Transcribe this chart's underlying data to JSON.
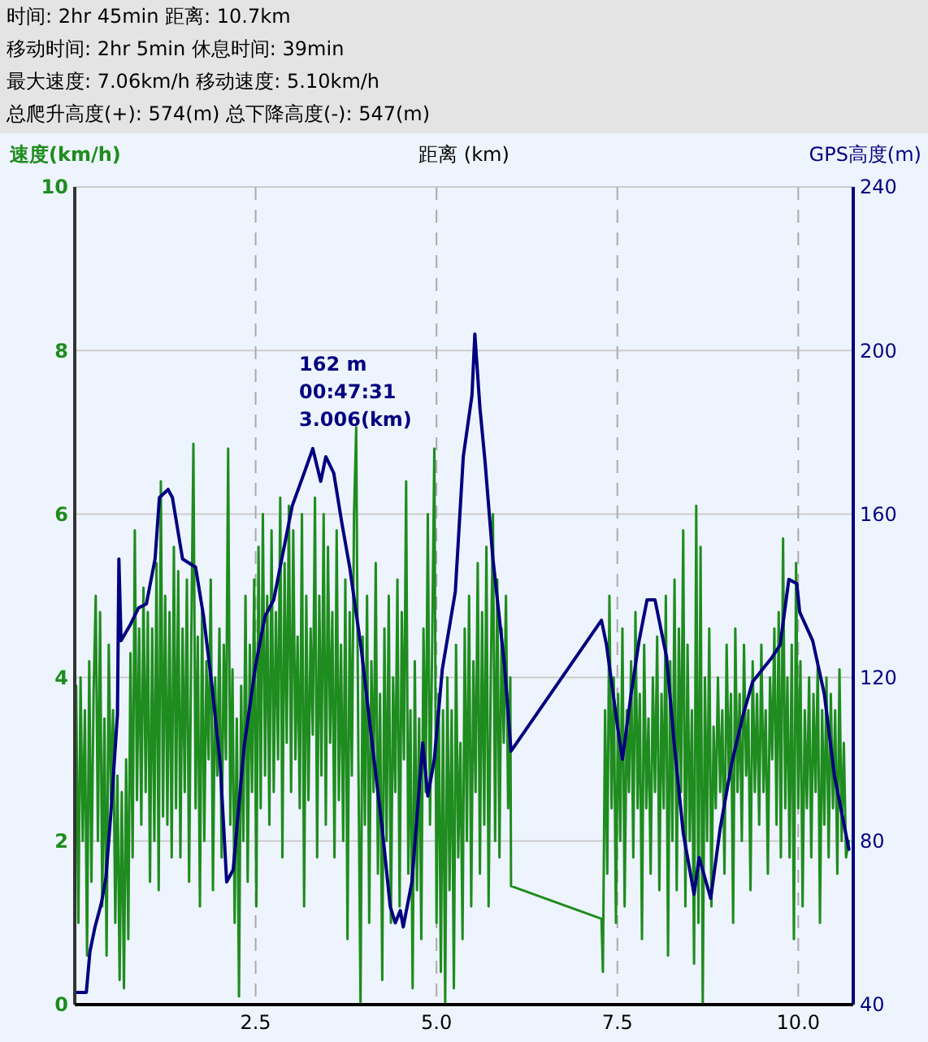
{
  "chart_data": {
    "type": "line",
    "xlabel": "距离 (km)",
    "ylabel": "速度(km/h)",
    "y2label": "GPS高度(m)",
    "annotations": [
      "时间: 2hr 45min  距离: 10.7km",
      "移动时间: 2hr 5min  休息时间: 39min",
      "最大速度: 7.06km/h  移动速度: 5.10km/h",
      "总爬升高度(+): 574(m)  总下降高度(-): 547(m)",
      "162 m\n00:47:31\n3.006(km)"
    ],
    "xlim": [
      0,
      10.76
    ],
    "xticks": [
      2.5,
      {
        "value": 5,
        "label": "5.0"
      },
      7.5,
      {
        "value": 10,
        "label": "10.0"
      }
    ],
    "ylim": [
      0,
      10
    ],
    "yticks": [
      0,
      2,
      4,
      6,
      8,
      10
    ],
    "y2lim": [
      40,
      240
    ],
    "y2ticks": [
      40,
      80,
      120,
      160,
      200,
      240
    ],
    "grid": true,
    "series": [
      {
        "color": "#1e8c1e",
        "x": [
          0.02,
          0.05,
          0.08,
          0.11,
          0.14,
          0.17,
          0.2,
          0.23,
          0.26,
          0.29,
          0.32,
          0.35,
          0.38,
          0.41,
          0.44,
          0.47,
          0.5,
          0.53,
          0.56,
          0.59,
          0.62,
          0.65,
          0.68,
          0.71,
          0.74,
          0.77,
          0.8,
          0.83,
          0.86,
          0.89,
          0.92,
          0.95,
          0.98,
          1.01,
          1.04,
          1.07,
          1.1,
          1.13,
          1.16,
          1.19,
          1.22,
          1.25,
          1.28,
          1.31,
          1.34,
          1.37,
          1.4,
          1.43,
          1.46,
          1.49,
          1.52,
          1.55,
          1.58,
          1.61,
          1.64,
          1.67,
          1.7,
          1.73,
          1.76,
          1.79,
          1.82,
          1.85,
          1.88,
          1.91,
          1.94,
          1.97,
          2.0,
          2.03,
          2.06,
          2.09,
          2.12,
          2.15,
          2.18,
          2.21,
          2.24,
          2.27,
          2.3,
          2.33,
          2.36,
          2.39,
          2.42,
          2.45,
          2.48,
          2.51,
          2.54,
          2.57,
          2.6,
          2.63,
          2.66,
          2.69,
          2.72,
          2.75,
          2.78,
          2.81,
          2.84,
          2.87,
          2.9,
          2.93,
          2.96,
          2.99,
          3.02,
          3.05,
          3.08,
          3.11,
          3.14,
          3.17,
          3.2,
          3.23,
          3.26,
          3.29,
          3.32,
          3.35,
          3.38,
          3.41,
          3.44,
          3.47,
          3.5,
          3.53,
          3.56,
          3.59,
          3.62,
          3.65,
          3.68,
          3.71,
          3.74,
          3.77,
          3.8,
          3.83,
          3.86,
          3.89,
          3.92,
          3.95,
          3.98,
          4.01,
          4.04,
          4.07,
          4.1,
          4.13,
          4.16,
          4.19,
          4.22,
          4.25,
          4.28,
          4.31,
          4.34,
          4.37,
          4.4,
          4.43,
          4.46,
          4.49,
          4.52,
          4.55,
          4.58,
          4.61,
          4.64,
          4.67,
          4.7,
          4.73,
          4.76,
          4.79,
          4.82,
          4.85,
          4.88,
          4.91,
          4.94,
          4.97,
          5.0,
          5.03,
          5.06,
          5.09,
          5.12,
          5.15,
          5.18,
          5.21,
          5.24,
          5.27,
          5.3,
          5.33,
          5.36,
          5.39,
          5.42,
          5.45,
          5.48,
          5.51,
          5.54,
          5.57,
          5.6,
          5.63,
          5.66,
          5.69,
          5.72,
          5.75,
          5.78,
          5.81,
          5.84,
          5.87,
          5.9,
          5.93,
          5.96,
          5.99,
          6.02,
          6.03,
          7.28,
          7.3,
          7.33,
          7.36,
          7.39,
          7.42,
          7.45,
          7.48,
          7.51,
          7.54,
          7.57,
          7.6,
          7.63,
          7.66,
          7.69,
          7.72,
          7.75,
          7.78,
          7.81,
          7.84,
          7.87,
          7.9,
          7.93,
          7.96,
          7.99,
          8.02,
          8.05,
          8.08,
          8.11,
          8.14,
          8.17,
          8.2,
          8.23,
          8.26,
          8.29,
          8.32,
          8.35,
          8.38,
          8.41,
          8.44,
          8.47,
          8.5,
          8.53,
          8.56,
          8.59,
          8.62,
          8.65,
          8.68,
          8.71,
          8.74,
          8.77,
          8.8,
          8.83,
          8.86,
          8.89,
          8.92,
          8.95,
          8.98,
          9.01,
          9.04,
          9.07,
          9.1,
          9.13,
          9.16,
          9.19,
          9.22,
          9.25,
          9.28,
          9.31,
          9.34,
          9.37,
          9.4,
          9.43,
          9.46,
          9.49,
          9.52,
          9.55,
          9.58,
          9.61,
          9.64,
          9.67,
          9.7,
          9.73,
          9.76,
          9.79,
          9.82,
          9.85,
          9.88,
          9.91,
          9.94,
          9.97,
          10.0,
          10.03,
          10.06,
          10.09,
          10.12,
          10.15,
          10.18,
          10.21,
          10.24,
          10.27,
          10.3,
          10.33,
          10.36,
          10.39,
          10.42,
          10.45,
          10.48,
          10.51,
          10.54,
          10.57,
          10.6,
          10.63,
          10.66,
          10.7
        ],
        "values": [
          3.9,
          1.0,
          4.0,
          2.0,
          3.6,
          0.6,
          4.2,
          1.5,
          3.8,
          5.0,
          2.0,
          4.8,
          1.2,
          3.5,
          0.6,
          4.4,
          2.5,
          3.6,
          1.0,
          2.8,
          0.3,
          2.6,
          0.2,
          3.0,
          0.8,
          4.3,
          1.8,
          5.8,
          2.5,
          4.6,
          2.2,
          5.1,
          2.6,
          4.8,
          1.5,
          4.6,
          2.0,
          5.4,
          1.4,
          6.4,
          2.3,
          5.0,
          2.2,
          4.8,
          1.8,
          5.6,
          2.4,
          5.3,
          1.8,
          4.6,
          2.6,
          5.2,
          1.5,
          4.4,
          6.86,
          2.4,
          4.5,
          1.2,
          4.8,
          2.0,
          4.2,
          3.0,
          5.2,
          1.4,
          4.0,
          2.8,
          4.6,
          1.8,
          4.4,
          3.0,
          6.8,
          2.2,
          4.1,
          1.0,
          3.5,
          0.1,
          3.9,
          2.0,
          5.0,
          1.5,
          4.4,
          2.6,
          5.2,
          1.2,
          5.6,
          2.4,
          6.0,
          2.8,
          5.0,
          2.2,
          5.8,
          2.6,
          4.8,
          3.0,
          6.2,
          1.8,
          5.4,
          3.2,
          6.1,
          2.6,
          5.8,
          3.0,
          4.5,
          2.4,
          6.0,
          1.2,
          5.0,
          2.5,
          4.6,
          3.3,
          6.2,
          1.8,
          5.0,
          2.8,
          6.0,
          2.2,
          5.6,
          3.2,
          4.8,
          1.8,
          5.8,
          2.5,
          4.4,
          2.0,
          5.2,
          0.8,
          4.8,
          2.8,
          6.0,
          7.06,
          3.0,
          0.0,
          4.5,
          2.2,
          5.0,
          1.0,
          4.2,
          2.6,
          5.4,
          1.6,
          3.8,
          0.3,
          4.6,
          2.0,
          5.0,
          1.0,
          4.0,
          2.6,
          5.2,
          1.2,
          4.8,
          3.0,
          6.4,
          1.6,
          3.6,
          0.2,
          4.2,
          1.4,
          3.5,
          0.8,
          4.6,
          2.6,
          6.0,
          2.2,
          4.4,
          6.8,
          1.0,
          3.8,
          0.4,
          3.6,
          0.0,
          4.0,
          1.4,
          3.6,
          0.2,
          4.4,
          1.8,
          3.2,
          0.8,
          4.6,
          2.0,
          5.0,
          1.2,
          4.2,
          2.6,
          5.4,
          1.6,
          4.8,
          2.2,
          5.6,
          1.2,
          4.0,
          6.0,
          2.0,
          5.2,
          1.8,
          4.6,
          3.2,
          5.0,
          2.4,
          4.0,
          1.45,
          1.05,
          0.4,
          3.6,
          1.6,
          5.0,
          2.4,
          4.0,
          1.0,
          3.8,
          2.0,
          4.6,
          1.2,
          3.6,
          2.6,
          4.2,
          1.8,
          4.8,
          2.4,
          3.8,
          0.8,
          4.4,
          2.4,
          3.5,
          1.6,
          4.0,
          2.6,
          4.5,
          1.4,
          3.8,
          2.4,
          5.0,
          0.6,
          4.2,
          2.0,
          5.2,
          1.4,
          4.6,
          2.6,
          5.8,
          1.2,
          4.4,
          2.0,
          3.6,
          0.5,
          6.1,
          1.0,
          5.6,
          0.0,
          4.0,
          2.0,
          4.6,
          1.2,
          3.4,
          2.4,
          4.0,
          2.6,
          3.6,
          1.6,
          4.4,
          2.8,
          3.8,
          1.0,
          4.6,
          2.6,
          3.8,
          2.0,
          4.4,
          2.8,
          3.6,
          1.4,
          4.2,
          2.6,
          3.8,
          2.2,
          4.4,
          2.6,
          3.6,
          1.6,
          4.0,
          3.0,
          4.6,
          2.2,
          4.8,
          1.8,
          5.7,
          2.4,
          4.0,
          1.8,
          4.4,
          0.8,
          5.4,
          2.4,
          4.2,
          1.2,
          3.6,
          2.4,
          4.0,
          1.8,
          3.8,
          2.6,
          4.2,
          1.0,
          3.6,
          2.2,
          4.0,
          1.8,
          3.8,
          2.4,
          3.6,
          1.6,
          4.1,
          2.0,
          3.2,
          1.8,
          2.0
        ]
      },
      {
        "color": "#000080",
        "axis": "y2",
        "x": [
          0.01,
          0.16,
          0.21,
          0.28,
          0.37,
          0.43,
          0.5,
          0.59,
          0.61,
          0.64,
          0.77,
          0.88,
          0.99,
          1.11,
          1.17,
          1.29,
          1.35,
          1.49,
          1.67,
          1.78,
          1.89,
          2.01,
          2.1,
          2.19,
          2.34,
          2.5,
          2.63,
          2.75,
          3.006,
          3.17,
          3.29,
          3.4,
          3.47,
          3.58,
          3.69,
          3.8,
          3.96,
          4.09,
          4.25,
          4.36,
          4.43,
          4.5,
          4.54,
          4.66,
          4.81,
          4.88,
          4.97,
          5.08,
          5.26,
          5.37,
          5.49,
          5.53,
          5.6,
          5.67,
          5.78,
          5.94,
          6.03,
          7.28,
          7.35,
          7.51,
          7.57,
          7.69,
          7.8,
          7.91,
          8.02,
          8.18,
          8.29,
          8.41,
          8.56,
          8.63,
          8.79,
          8.92,
          9.08,
          9.24,
          9.37,
          9.64,
          9.75,
          9.87,
          9.98,
          10.02,
          10.2,
          10.36,
          10.5,
          10.7
        ],
        "values": [
          43,
          43,
          53,
          59,
          65,
          71,
          87,
          111,
          149,
          129,
          133,
          137,
          138,
          149,
          164,
          166,
          164,
          149,
          147,
          135,
          119,
          99,
          70,
          73,
          103,
          123,
          135,
          139,
          162,
          170,
          176,
          168,
          174,
          170,
          158,
          147,
          127,
          107,
          83,
          64,
          60,
          63,
          59,
          70,
          104,
          91,
          100,
          122,
          141,
          174,
          189,
          204,
          186,
          173,
          149,
          123,
          102,
          134,
          128,
          107,
          100,
          116,
          129,
          139,
          139,
          125,
          103,
          82,
          67,
          76,
          66,
          83,
          99,
          111,
          119,
          125,
          128,
          144,
          143,
          136,
          129,
          116,
          96,
          78
        ]
      }
    ]
  }
}
